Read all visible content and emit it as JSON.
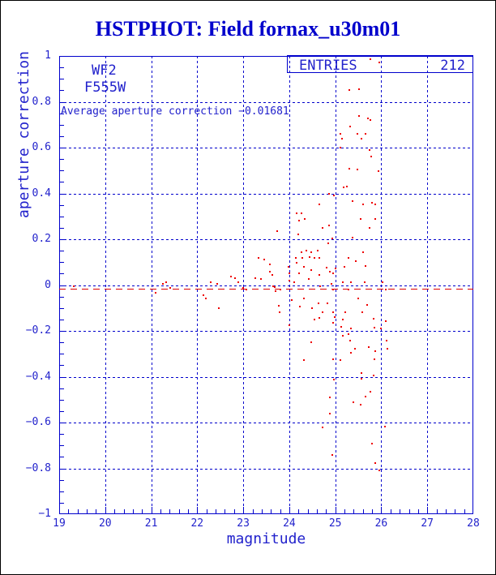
{
  "window": {
    "background": "#ffffff",
    "border_color": "#000000"
  },
  "title": "HSTPHOT: Field fornax_u30m01",
  "colors": {
    "line_blue": "#0000cc",
    "text_blue": "#2222cc",
    "title_blue": "#0000cc",
    "point_red": "#ee0000",
    "avg_line_red": "#dd0000"
  },
  "plot": {
    "detector": "WF2",
    "filter": "F555W",
    "avg_label": "Average aperture correction −0.01681",
    "entries_label": "ENTRIES",
    "entries_value": "212"
  },
  "chart_data": {
    "type": "scatter",
    "title": "HSTPHOT: Field fornax_u30m01",
    "xlabel": "magnitude",
    "ylabel": "aperture correction",
    "xlim": [
      19,
      28
    ],
    "ylim": [
      -1,
      1
    ],
    "grid": true,
    "grid_style": "dotted-blue",
    "x_tick_values": [
      19,
      20,
      21,
      22,
      23,
      24,
      25,
      26,
      27,
      28
    ],
    "x_tick_labels": [
      "19",
      "20",
      "21",
      "22",
      "23",
      "24",
      "25",
      "26",
      "27",
      "28"
    ],
    "y_tick_values": [
      1,
      0.8,
      0.6,
      0.4,
      0.2,
      0,
      -0.2,
      -0.4,
      -0.6,
      -0.8,
      -1
    ],
    "y_tick_labels": [
      "1",
      "0.8",
      "0.6",
      "0.4",
      "0.2",
      "0",
      "−0.2",
      "−0.4",
      "−0.6",
      "−0.8",
      "−1"
    ],
    "x_minor_step": 0.2,
    "y_minor_step": 0.05,
    "average_aperture_correction": -0.01681,
    "entries": 212,
    "series": [
      {
        "name": "aperture corrections",
        "marker": "square-dot",
        "color": "#ee0000",
        "points": [
          [
            25.76,
            0.985
          ],
          [
            25.96,
            0.971
          ],
          [
            25.3,
            0.85
          ],
          [
            25.52,
            0.854
          ],
          [
            25.52,
            0.737
          ],
          [
            25.71,
            0.726
          ],
          [
            25.76,
            0.719
          ],
          [
            25.32,
            0.691
          ],
          [
            25.11,
            0.662
          ],
          [
            25.48,
            0.659
          ],
          [
            25.66,
            0.662
          ],
          [
            25.15,
            0.638
          ],
          [
            25.57,
            0.638
          ],
          [
            25.11,
            0.599
          ],
          [
            25.74,
            0.588
          ],
          [
            25.78,
            0.563
          ],
          [
            25.3,
            0.507
          ],
          [
            25.48,
            0.503
          ],
          [
            25.94,
            0.496
          ],
          [
            25.18,
            0.425
          ],
          [
            25.25,
            0.429
          ],
          [
            24.86,
            0.4
          ],
          [
            24.97,
            0.39
          ],
          [
            25.37,
            0.365
          ],
          [
            25.6,
            0.351
          ],
          [
            25.8,
            0.361
          ],
          [
            25.87,
            0.351
          ],
          [
            24.65,
            0.354
          ],
          [
            19.32,
            -0.004
          ],
          [
            21.1,
            -0.035
          ],
          [
            21.25,
            0.007
          ],
          [
            21.32,
            0.014
          ],
          [
            21.41,
            -0.011
          ],
          [
            22.29,
            0.011
          ],
          [
            22.43,
            0.007
          ],
          [
            22.13,
            -0.043
          ],
          [
            22.19,
            -0.06
          ],
          [
            22.47,
            -0.099
          ],
          [
            22.73,
            0.039
          ],
          [
            22.82,
            0.032
          ],
          [
            22.89,
            0.011
          ],
          [
            23.0,
            -0.011
          ],
          [
            23.07,
            -0.018
          ],
          [
            23.26,
            0.032
          ],
          [
            23.33,
            0.12
          ],
          [
            23.39,
            0.028
          ],
          [
            23.46,
            0.113
          ],
          [
            23.58,
            0.06
          ],
          [
            23.58,
            0.089
          ],
          [
            23.63,
            0.043
          ],
          [
            23.65,
            -0.004
          ],
          [
            23.68,
            -0.007
          ],
          [
            23.7,
            -0.025
          ],
          [
            23.74,
            0.237
          ],
          [
            23.77,
            -0.089
          ],
          [
            23.79,
            -0.117
          ],
          [
            23.81,
            -0.021
          ],
          [
            24.16,
            0.315
          ],
          [
            24.27,
            0.315
          ],
          [
            24.34,
            0.29
          ],
          [
            24.21,
            0.283
          ],
          [
            25.55,
            0.29
          ],
          [
            25.87,
            0.287
          ],
          [
            24.72,
            0.248
          ],
          [
            24.86,
            0.259
          ],
          [
            25.74,
            0.251
          ],
          [
            24.2,
            0.22
          ],
          [
            24.93,
            0.205
          ],
          [
            25.37,
            0.209
          ],
          [
            24.85,
            0.181
          ],
          [
            24.37,
            0.149
          ],
          [
            24.27,
            0.145
          ],
          [
            24.48,
            0.142
          ],
          [
            24.62,
            0.149
          ],
          [
            25.6,
            0.145
          ],
          [
            24.14,
            0.12
          ],
          [
            24.28,
            0.12
          ],
          [
            24.44,
            0.124
          ],
          [
            24.55,
            0.117
          ],
          [
            24.65,
            0.117
          ],
          [
            25.29,
            0.12
          ],
          [
            25.45,
            0.106
          ],
          [
            23.98,
            0.081
          ],
          [
            24.16,
            0.096
          ],
          [
            24.32,
            0.081
          ],
          [
            24.48,
            0.064
          ],
          [
            24.81,
            0.078
          ],
          [
            24.88,
            0.06
          ],
          [
            25.0,
            0.071
          ],
          [
            25.2,
            0.081
          ],
          [
            25.66,
            0.085
          ],
          [
            24.0,
            0.05
          ],
          [
            24.21,
            0.053
          ],
          [
            24.65,
            0.046
          ],
          [
            24.95,
            0.05
          ],
          [
            24.0,
            0.021
          ],
          [
            24.11,
            0.014
          ],
          [
            24.42,
            0.025
          ],
          [
            24.67,
            -0.004
          ],
          [
            24.92,
            0.004
          ],
          [
            25.16,
            0.014
          ],
          [
            25.34,
            0.011
          ],
          [
            25.64,
            0.014
          ],
          [
            26.03,
            0.014
          ],
          [
            24.95,
            -0.018
          ],
          [
            25.29,
            -0.018
          ],
          [
            26.1,
            -0.018
          ],
          [
            24.05,
            -0.067
          ],
          [
            24.32,
            -0.057
          ],
          [
            25.5,
            -0.057
          ],
          [
            24.64,
            -0.081
          ],
          [
            24.83,
            -0.078
          ],
          [
            25.69,
            -0.085
          ],
          [
            24.23,
            -0.092
          ],
          [
            24.49,
            -0.099
          ],
          [
            24.72,
            -0.117
          ],
          [
            24.95,
            -0.12
          ],
          [
            25.22,
            -0.117
          ],
          [
            25.59,
            -0.12
          ],
          [
            24.55,
            -0.152
          ],
          [
            24.65,
            -0.142
          ],
          [
            24.99,
            -0.138
          ],
          [
            25.16,
            -0.149
          ],
          [
            24.95,
            -0.166
          ],
          [
            25.83,
            -0.145
          ],
          [
            24.0,
            -0.174
          ],
          [
            26.1,
            -0.159
          ],
          [
            25.13,
            -0.181
          ],
          [
            25.34,
            -0.188
          ],
          [
            25.85,
            -0.184
          ],
          [
            25.99,
            -0.188
          ],
          [
            25.29,
            -0.213
          ],
          [
            25.16,
            -0.22
          ],
          [
            24.48,
            -0.248
          ],
          [
            25.32,
            -0.244
          ],
          [
            25.43,
            -0.276
          ],
          [
            25.73,
            -0.269
          ],
          [
            26.11,
            -0.241
          ],
          [
            26.13,
            -0.276
          ],
          [
            25.34,
            -0.294
          ],
          [
            25.87,
            -0.29
          ],
          [
            24.32,
            -0.329
          ],
          [
            24.95,
            -0.322
          ],
          [
            25.11,
            -0.329
          ],
          [
            25.85,
            -0.322
          ],
          [
            25.57,
            -0.383
          ],
          [
            25.83,
            -0.393
          ],
          [
            24.97,
            -0.411
          ],
          [
            25.57,
            -0.407
          ],
          [
            25.76,
            -0.464
          ],
          [
            25.66,
            -0.485
          ],
          [
            24.88,
            -0.489
          ],
          [
            25.39,
            -0.51
          ],
          [
            25.55,
            -0.521
          ],
          [
            24.88,
            -0.56
          ],
          [
            24.72,
            -0.62
          ],
          [
            26.08,
            -0.616
          ],
          [
            25.8,
            -0.691
          ],
          [
            24.93,
            -0.74
          ],
          [
            25.87,
            -0.776
          ],
          [
            25.96,
            -0.808
          ]
        ]
      }
    ]
  }
}
